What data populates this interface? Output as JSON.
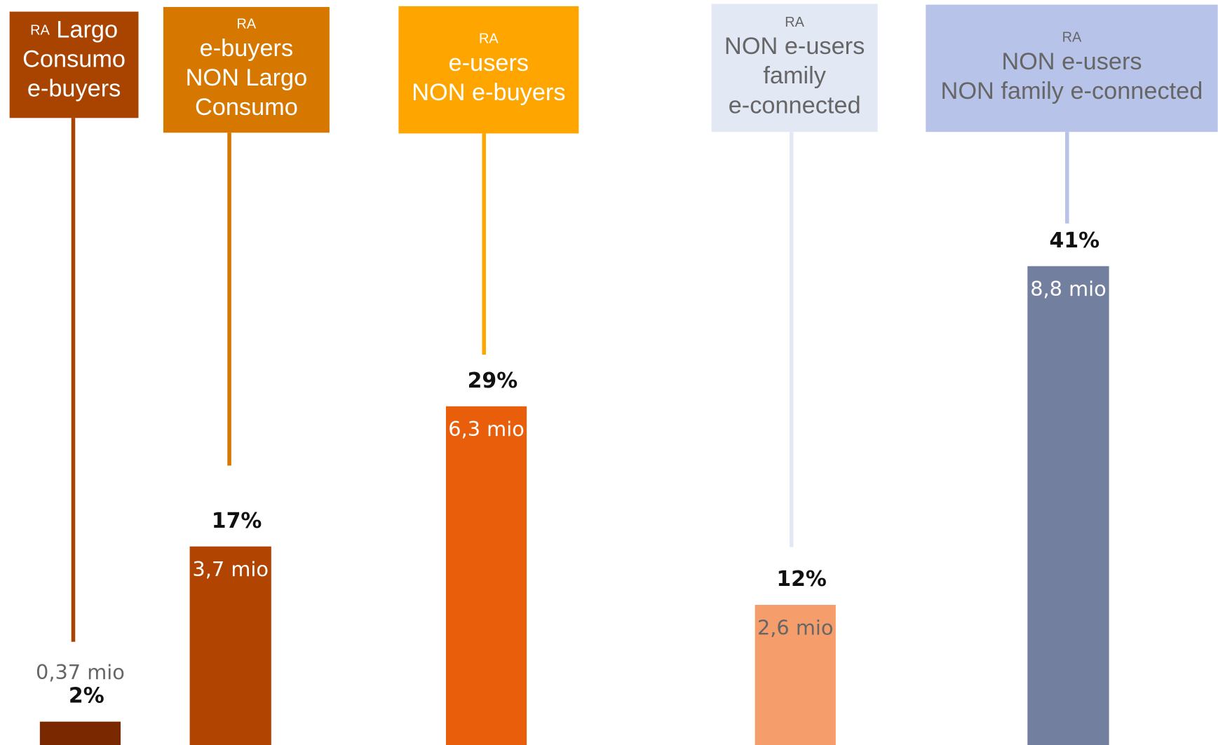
{
  "chart_data": {
    "type": "bar",
    "category_prefix": "RA",
    "categories": [
      [
        "Largo",
        "Consumo",
        "e-buyers"
      ],
      [
        "e-buyers",
        "NON Largo",
        "Consumo"
      ],
      [
        "e-users",
        "NON e-buyers"
      ],
      [
        "NON e-users",
        "family",
        "e-connected"
      ],
      [
        "NON e-users",
        "NON family e-connected"
      ]
    ],
    "values": [
      2,
      17,
      29,
      12,
      41
    ],
    "value_labels": [
      "2%",
      "17%",
      "29%",
      "12%",
      "41%"
    ],
    "volume_labels": [
      "0,37 mio",
      "3,7 mio",
      "6,3 mio",
      "2,6 mio",
      "8,8 mio"
    ],
    "box_colors": [
      "#a84300",
      "#d67800",
      "#ffa500",
      "#e3e8f5",
      "#b7c3e8"
    ],
    "colors": [
      "#7a2800",
      "#b04400",
      "#e85e0a",
      "#f59e6c",
      "#737f9e"
    ]
  }
}
